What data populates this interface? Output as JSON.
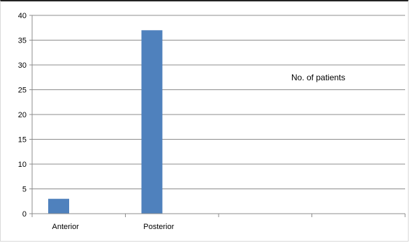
{
  "chart_data": {
    "type": "bar",
    "categories": [
      "Anterior",
      "Posterior",
      "",
      ""
    ],
    "series": [
      {
        "values": [
          3,
          37,
          null,
          null
        ],
        "color": "#4f81bd"
      }
    ],
    "ylim": [
      0,
      40
    ],
    "yticks": [
      0,
      5,
      10,
      15,
      20,
      25,
      30,
      35,
      40
    ],
    "grid": true,
    "annotation": "No. of patients",
    "title": "",
    "xlabel": "",
    "ylabel": ""
  }
}
